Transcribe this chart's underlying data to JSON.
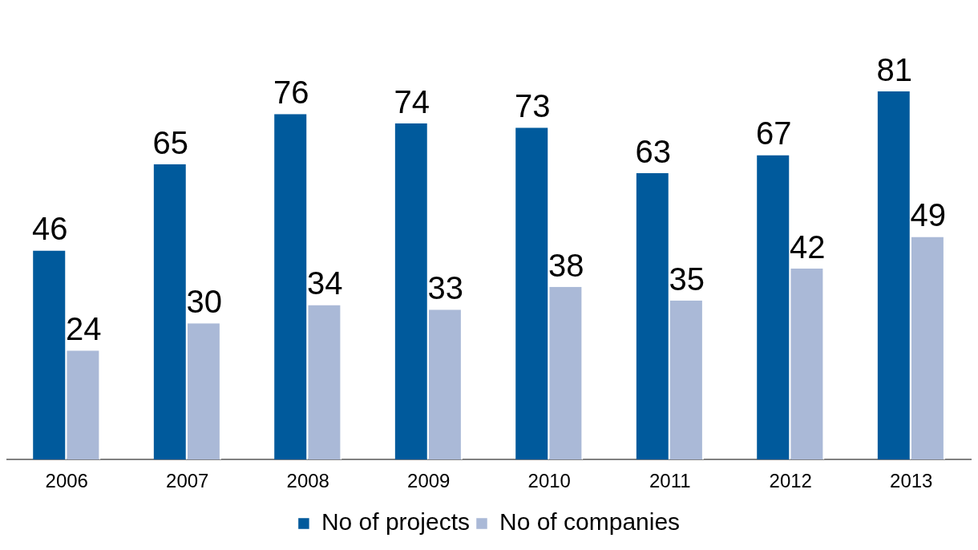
{
  "chart_data": {
    "type": "bar",
    "categories": [
      "2006",
      "2007",
      "2008",
      "2009",
      "2010",
      "2011",
      "2012",
      "2013"
    ],
    "series": [
      {
        "name": "No of projects",
        "color": "#005a9c",
        "values": [
          46,
          65,
          76,
          74,
          73,
          63,
          67,
          81
        ]
      },
      {
        "name": "No of companies",
        "color": "#aab9d7",
        "values": [
          24,
          30,
          34,
          33,
          38,
          35,
          42,
          49
        ]
      }
    ],
    "data_labels": true,
    "legend": "bottom",
    "grid": false
  }
}
